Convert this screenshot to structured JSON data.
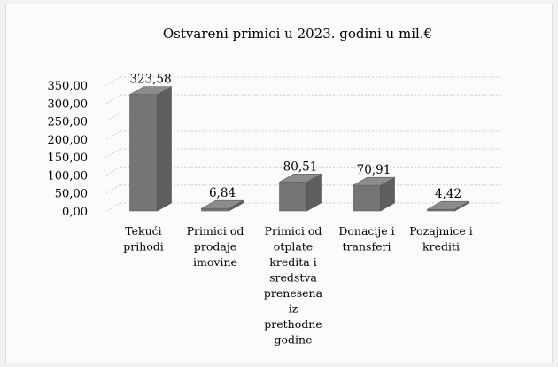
{
  "chart_data": {
    "type": "bar",
    "title": "Ostvareni primici u 2023. godini u mil.€",
    "xlabel": "",
    "ylabel": "",
    "ylim": [
      0,
      350
    ],
    "yticks": [
      "0,00",
      "50,00",
      "100,00",
      "150,00",
      "200,00",
      "250,00",
      "300,00",
      "350,00"
    ],
    "ytick_values": [
      0,
      50,
      100,
      150,
      200,
      250,
      300,
      350
    ],
    "grid": true,
    "legend": "none",
    "style": "3d-column",
    "bar_color": "#757575",
    "categories": [
      [
        "Tekući",
        "prihodi"
      ],
      [
        "Primici od",
        "prodaje",
        "imovine"
      ],
      [
        "Primici od",
        "otplate",
        "kredita i",
        "sredstva",
        "prenesena",
        "iz",
        "prethodne",
        "godine"
      ],
      [
        "Donacije i",
        "transferi"
      ],
      [
        "Pozajmice i",
        "krediti"
      ]
    ],
    "values": [
      323.58,
      6.84,
      80.51,
      70.91,
      4.42
    ],
    "data_labels": [
      "323,58",
      "6,84",
      "80,51",
      "70,91",
      "4,42"
    ]
  }
}
